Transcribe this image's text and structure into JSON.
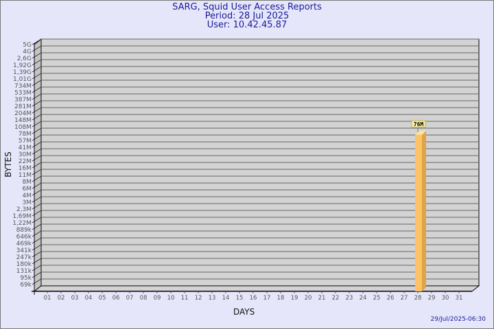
{
  "chart_data": {
    "type": "bar",
    "title": "SARG, Squid User Access Reports",
    "period": "Period: 28 Jul 2025",
    "user": "User: 10.42.45.87",
    "xlabel": "DAYS",
    "ylabel": "BYTES",
    "y_scale": "log",
    "y_ticks": [
      "5G",
      "4G",
      "2,6G",
      "1,92G",
      "1,39G",
      "1,01G",
      "734M",
      "533M",
      "387M",
      "281M",
      "204M",
      "148M",
      "108M",
      "78M",
      "57M",
      "41M",
      "30M",
      "22M",
      "16M",
      "11M",
      "8M",
      "6M",
      "4M",
      "3M",
      "2,3M",
      "1,69M",
      "1,22M",
      "889k",
      "646k",
      "469k",
      "341k",
      "247k",
      "180k",
      "131k",
      "95k",
      "69k"
    ],
    "categories": [
      "01",
      "02",
      "03",
      "04",
      "05",
      "06",
      "07",
      "08",
      "09",
      "10",
      "11",
      "12",
      "13",
      "14",
      "15",
      "16",
      "17",
      "18",
      "19",
      "20",
      "21",
      "22",
      "23",
      "24",
      "25",
      "26",
      "27",
      "28",
      "29",
      "30",
      "31"
    ],
    "bars": [
      {
        "day": "28",
        "value": 76000000,
        "label": "76M"
      }
    ],
    "grid": true,
    "colors": {
      "bar": "#fcc265",
      "bar_side": "#dea448",
      "bar_top": "#fde59a",
      "wall": "#d3d3d3",
      "background": "#e6e6fa",
      "title": "#1a1a9a"
    }
  },
  "timestamp": "29/Jul/2025-06:30"
}
